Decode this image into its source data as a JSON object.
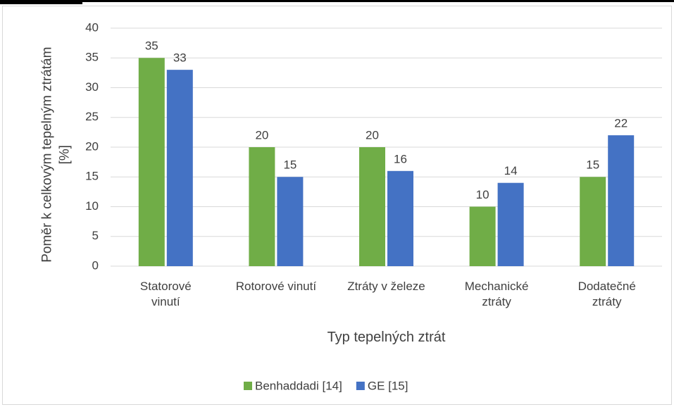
{
  "chart_data": {
    "type": "bar",
    "categories": [
      "Statorové\nvinutí",
      "Rotorové vinutí",
      "Ztráty v železe",
      "Mechanické\nztráty",
      "Dodatečné\nztráty"
    ],
    "series": [
      {
        "name": "Benhaddadi [14]",
        "color": "#70ad47",
        "values": [
          35,
          20,
          20,
          10,
          15
        ]
      },
      {
        "name": "GE [15]",
        "color": "#4472c4",
        "values": [
          33,
          15,
          16,
          14,
          22
        ]
      }
    ],
    "xlabel": "Typ tepelných ztrát",
    "ylabel": "Poměr k celkovým tepelným ztrátám\n[%]",
    "ylim": [
      0,
      40
    ],
    "yticks": [
      0,
      5,
      10,
      15,
      20,
      25,
      30,
      35,
      40
    ],
    "grid": true,
    "legend": "bottom"
  }
}
